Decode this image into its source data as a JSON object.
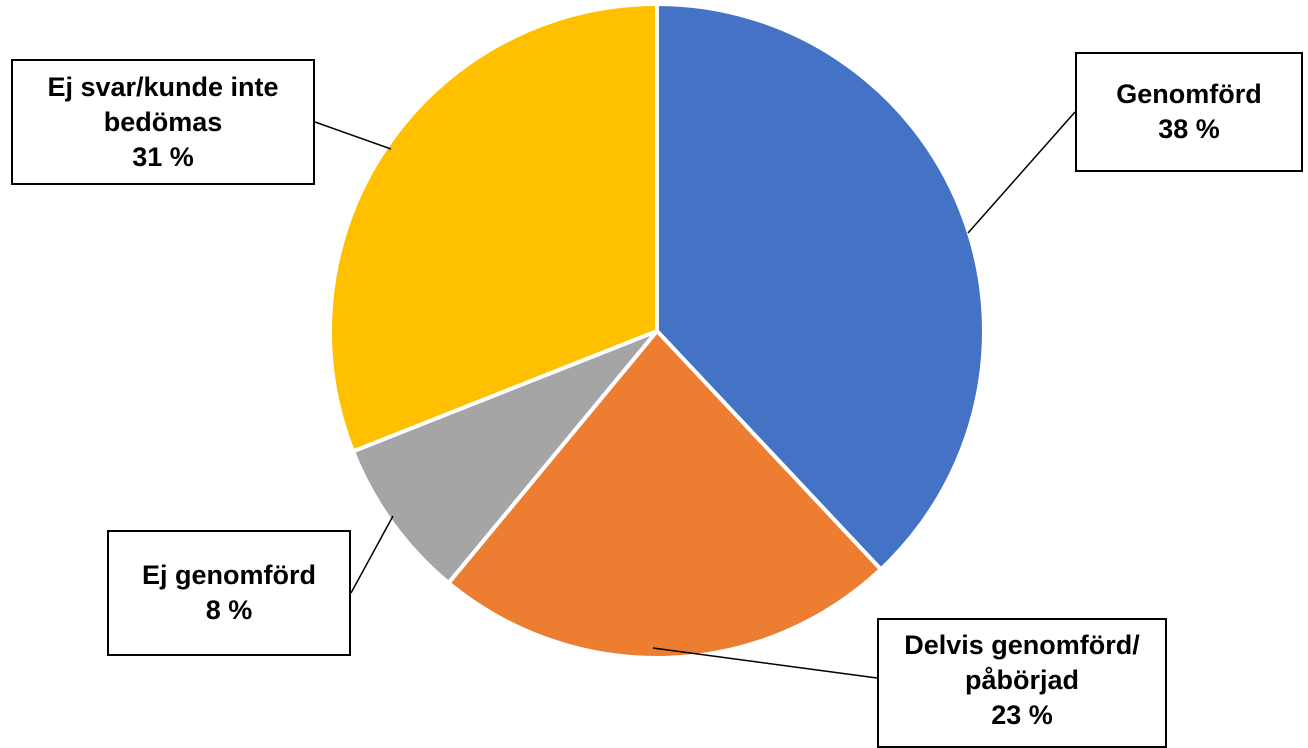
{
  "chart_data": {
    "type": "pie",
    "title": "",
    "start_angle_deg": 0,
    "direction": "clockwise",
    "slices": [
      {
        "label_lines": [
          "Genomförd"
        ],
        "value": 38,
        "value_label": "38 %",
        "color": "#4472C4"
      },
      {
        "label_lines": [
          "Delvis genomförd/",
          "påbörjad"
        ],
        "value": 23,
        "value_label": "23 %",
        "color": "#ED7D31"
      },
      {
        "label_lines": [
          "Ej genomförd"
        ],
        "value": 8,
        "value_label": "8 %",
        "color": "#A5A5A5"
      },
      {
        "label_lines": [
          "Ej svar/kunde inte",
          "bedömas"
        ],
        "value": 31,
        "value_label": "31 %",
        "color": "#FFC000"
      }
    ]
  }
}
